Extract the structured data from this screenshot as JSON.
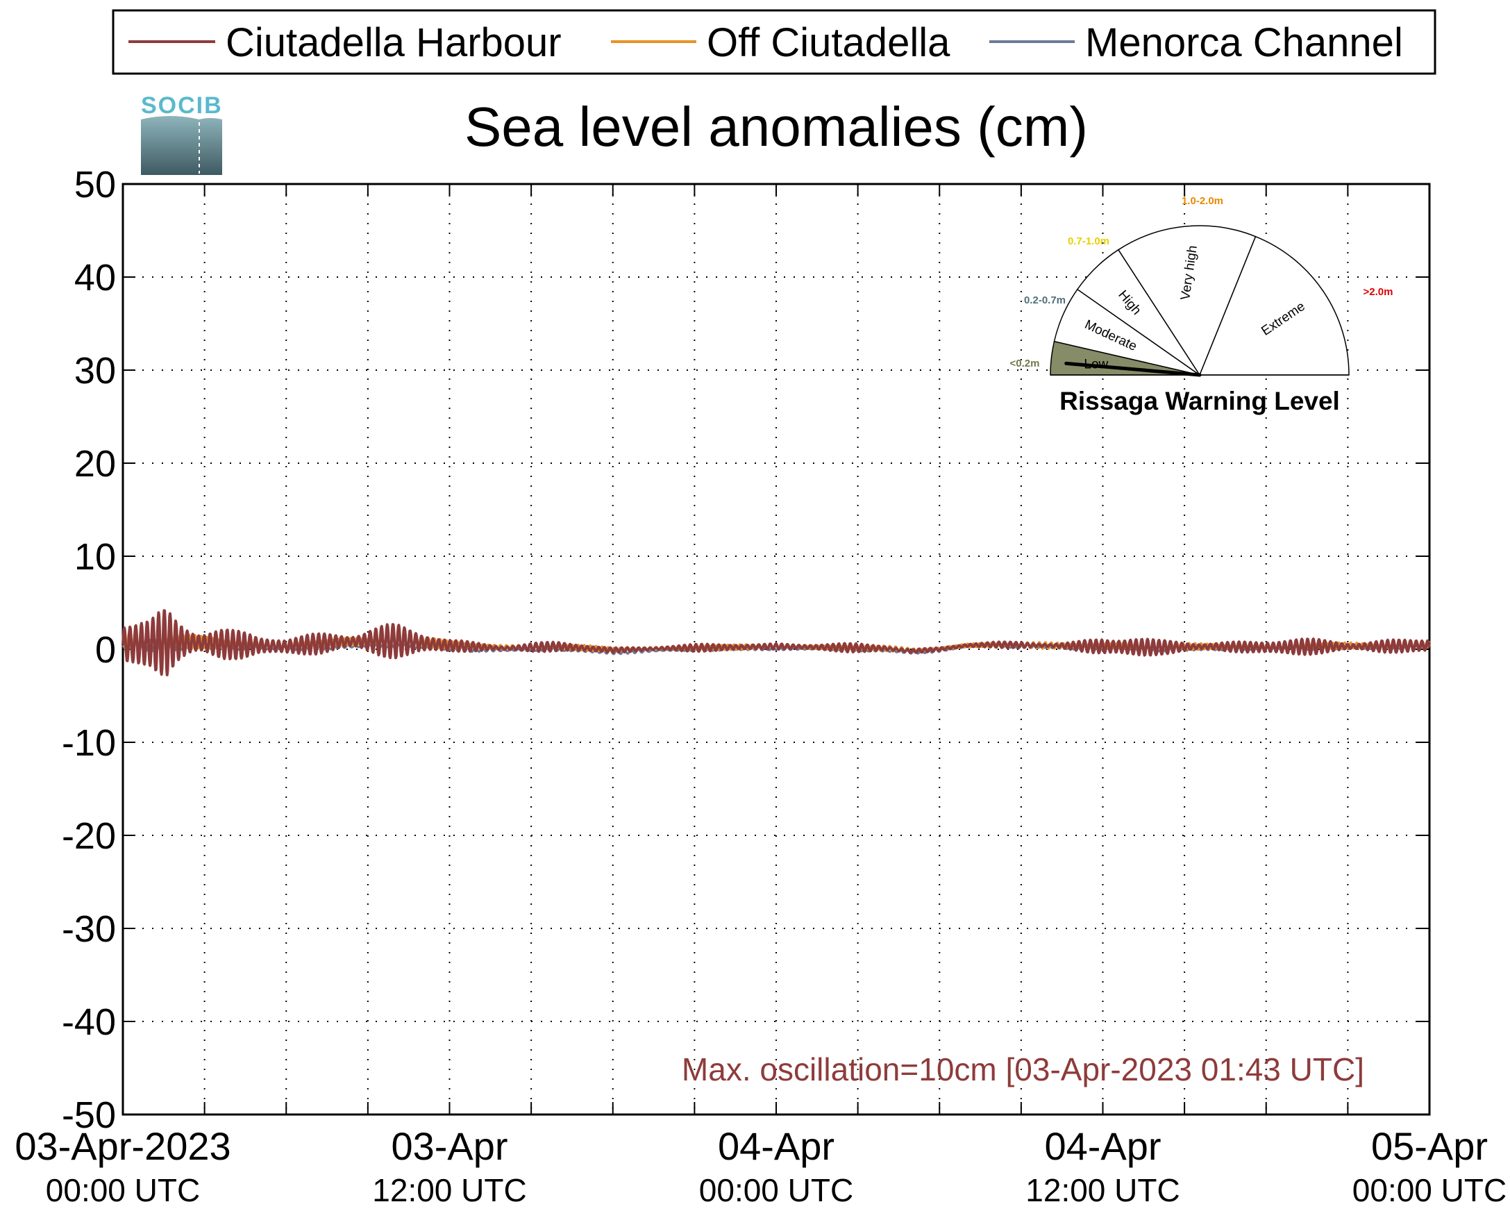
{
  "chart_data": {
    "type": "line",
    "title": "Sea level anomalies (cm)",
    "xlabel": "",
    "ylabel": "",
    "ylim": [
      -50,
      50
    ],
    "yticks": [
      "50",
      "40",
      "30",
      "20",
      "10",
      "0",
      "-10",
      "-20",
      "-30",
      "-40",
      "-50"
    ],
    "xlim_hours": [
      0,
      48
    ],
    "x_ticks": [
      {
        "hour": 0,
        "date": "03-Apr-2023",
        "time": "00:00 UTC"
      },
      {
        "hour": 12,
        "date": "03-Apr",
        "time": "12:00 UTC"
      },
      {
        "hour": 24,
        "date": "04-Apr",
        "time": "00:00 UTC"
      },
      {
        "hour": 36,
        "date": "04-Apr",
        "time": "12:00 UTC"
      },
      {
        "hour": 48,
        "date": "05-Apr",
        "time": "00:00 UTC"
      }
    ],
    "grid": true,
    "legend_position": "top",
    "series": [
      {
        "name": "Ciutadella Harbour",
        "color": "#8e3b3b",
        "envelope": [
          [
            0,
            3
          ],
          [
            1,
            3
          ],
          [
            1.6,
            5
          ],
          [
            2,
            4
          ],
          [
            2.6,
            4
          ],
          [
            3.2,
            3.5
          ],
          [
            4,
            2
          ],
          [
            5,
            1
          ],
          [
            6,
            1
          ],
          [
            7,
            1.5
          ],
          [
            8,
            2
          ],
          [
            9,
            2.2
          ],
          [
            10,
            2
          ],
          [
            11,
            1.2
          ],
          [
            12,
            0.9
          ],
          [
            14,
            0.6
          ],
          [
            16,
            0.5
          ],
          [
            18,
            0.4
          ],
          [
            20,
            0.4
          ],
          [
            22,
            0.4
          ],
          [
            24,
            0.5
          ],
          [
            26,
            0.5
          ],
          [
            28,
            0.4
          ],
          [
            30,
            0.3
          ],
          [
            32,
            0.3
          ],
          [
            34,
            0.4
          ],
          [
            35,
            0.8
          ],
          [
            36,
            1.4
          ],
          [
            37,
            1.2
          ],
          [
            38,
            0.8
          ],
          [
            40,
            0.8
          ],
          [
            42,
            0.9
          ],
          [
            44,
            0.9
          ],
          [
            46,
            1
          ],
          [
            48,
            0.9
          ]
        ],
        "baseline": [
          [
            0,
            0.5
          ],
          [
            2,
            0.8
          ],
          [
            4,
            0.5
          ],
          [
            6,
            0.3
          ],
          [
            8,
            0.8
          ],
          [
            10,
            0.9
          ],
          [
            12,
            0.4
          ],
          [
            14,
            0.1
          ],
          [
            16,
            0.3
          ],
          [
            18,
            -0.1
          ],
          [
            20,
            0.1
          ],
          [
            22,
            0.2
          ],
          [
            24,
            0.3
          ],
          [
            26,
            0.2
          ],
          [
            28,
            0.1
          ],
          [
            29,
            -0.2
          ],
          [
            30,
            0
          ],
          [
            31,
            0.4
          ],
          [
            32,
            0.5
          ],
          [
            34,
            0.4
          ],
          [
            36,
            0.3
          ],
          [
            38,
            0.2
          ],
          [
            40,
            0.3
          ],
          [
            42,
            0.2
          ],
          [
            44,
            0.3
          ],
          [
            46,
            0.3
          ],
          [
            48,
            0.4
          ]
        ]
      },
      {
        "name": "Off Ciutadella",
        "color": "#e8922a",
        "envelope": [
          [
            0,
            1.2
          ],
          [
            2,
            1.2
          ],
          [
            4,
            0.8
          ],
          [
            6,
            0.4
          ],
          [
            8,
            0.6
          ],
          [
            10,
            0.7
          ],
          [
            12,
            0.5
          ],
          [
            16,
            0.3
          ],
          [
            24,
            0.3
          ],
          [
            32,
            0.3
          ],
          [
            36,
            0.5
          ],
          [
            40,
            0.4
          ],
          [
            48,
            0.4
          ]
        ],
        "baseline": [
          [
            0,
            0.7
          ],
          [
            2,
            0.9
          ],
          [
            4,
            0.6
          ],
          [
            6,
            0.4
          ],
          [
            8,
            0.8
          ],
          [
            10,
            0.9
          ],
          [
            12,
            0.5
          ],
          [
            14,
            0.2
          ],
          [
            16,
            0.3
          ],
          [
            18,
            0
          ],
          [
            20,
            0.1
          ],
          [
            22,
            0.2
          ],
          [
            24,
            0.3
          ],
          [
            26,
            0.2
          ],
          [
            28,
            0.1
          ],
          [
            29,
            -0.1
          ],
          [
            30,
            0.1
          ],
          [
            31,
            0.4
          ],
          [
            32,
            0.5
          ],
          [
            34,
            0.4
          ],
          [
            36,
            0.4
          ],
          [
            38,
            0.3
          ],
          [
            40,
            0.3
          ],
          [
            42,
            0.3
          ],
          [
            44,
            0.4
          ],
          [
            46,
            0.4
          ],
          [
            48,
            0.5
          ]
        ]
      },
      {
        "name": "Menorca Channel",
        "color": "#6d7a99",
        "envelope": [
          [
            0,
            0.8
          ],
          [
            2,
            0.7
          ],
          [
            4,
            0.4
          ],
          [
            8,
            0.3
          ],
          [
            12,
            0.3
          ],
          [
            24,
            0.2
          ],
          [
            36,
            0.3
          ],
          [
            48,
            0.3
          ]
        ],
        "baseline": [
          [
            0,
            0.3
          ],
          [
            2,
            0.5
          ],
          [
            4,
            0.2
          ],
          [
            6,
            0.1
          ],
          [
            8,
            0.3
          ],
          [
            10,
            0.4
          ],
          [
            12,
            0.1
          ],
          [
            14,
            -0.1
          ],
          [
            16,
            0
          ],
          [
            18,
            -0.3
          ],
          [
            20,
            -0.1
          ],
          [
            22,
            0
          ],
          [
            24,
            0.1
          ],
          [
            26,
            0
          ],
          [
            28,
            -0.1
          ],
          [
            29,
            -0.3
          ],
          [
            30,
            -0.1
          ],
          [
            31,
            0.3
          ],
          [
            32,
            0.4
          ],
          [
            34,
            0.3
          ],
          [
            36,
            0.1
          ],
          [
            38,
            0
          ],
          [
            40,
            0.1
          ],
          [
            42,
            0.1
          ],
          [
            44,
            0.2
          ],
          [
            46,
            0.2
          ],
          [
            48,
            0.3
          ]
        ]
      }
    ],
    "annotation": {
      "text": "Max. oscillation=10cm [03-Apr-2023 01:43 UTC]",
      "color": "#8e3b3b"
    }
  },
  "logo": {
    "text": "SOCIB"
  },
  "gauge": {
    "title": "Rissaga Warning Level",
    "level": "Low",
    "needle_fraction": 0.05,
    "sectors": [
      {
        "label": "Low",
        "range": "<0.2m",
        "range_color": "#6f7a4f",
        "fill": "#858c67"
      },
      {
        "label": "Moderate",
        "range": "0.2-0.7m",
        "range_color": "#4f6f7a",
        "fill": "#ffffff"
      },
      {
        "label": "High",
        "range": "0.7-1.0m",
        "range_color": "#e8d000",
        "fill": "#ffffff"
      },
      {
        "label": "Very high",
        "range": "1.0-2.0m",
        "range_color": "#e88a00",
        "fill": "#ffffff"
      },
      {
        "label": "Extreme",
        "range": ">2.0m",
        "range_color": "#dd0000",
        "fill": "#ffffff"
      }
    ]
  }
}
